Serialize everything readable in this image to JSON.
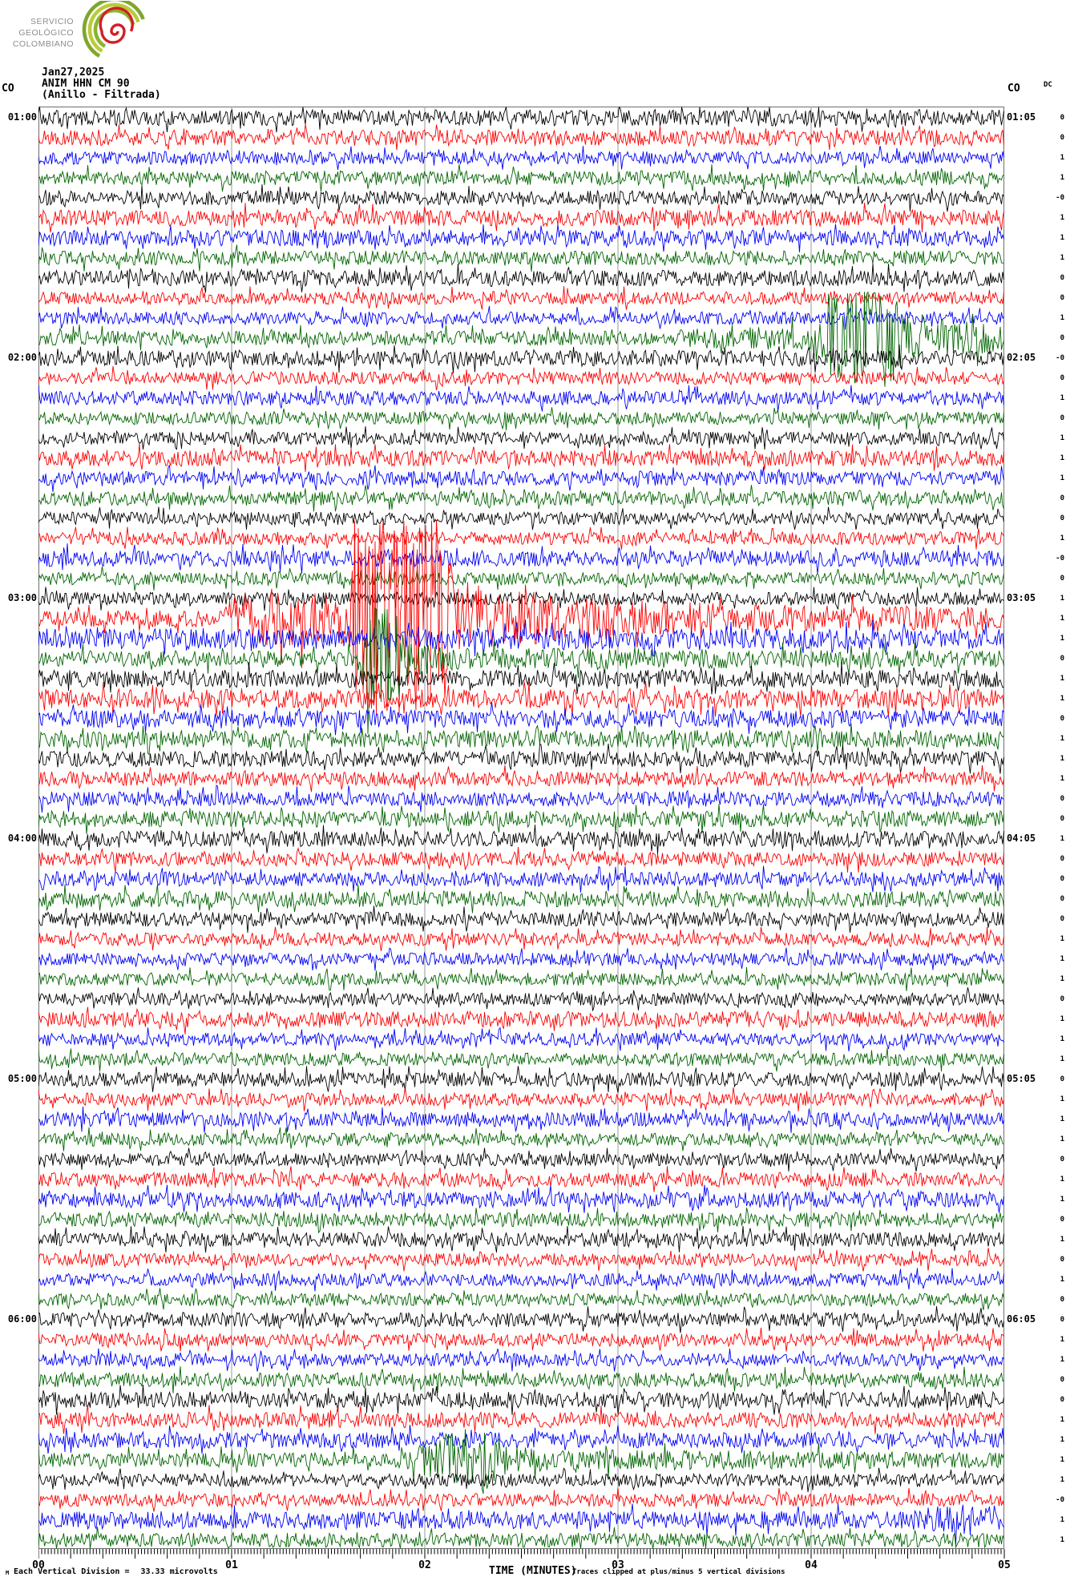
{
  "brand": {
    "lines": [
      "SERVICIO",
      "GEOLÓGICO",
      "COLOMBIANO"
    ]
  },
  "title": {
    "date": "Jan27,2025",
    "station": "ANIM HHN CM 90",
    "subtitle": "(Anillo - Filtrada)"
  },
  "labels": {
    "corner_left": "CO",
    "corner_right": "CO",
    "dc_header": "DC"
  },
  "footer": {
    "micro_mark": "M",
    "scale_text": "Each Vertical Division =",
    "scale_value": "33.33 microvolts",
    "time_label": "TIME (MINUTES)",
    "clip_note": "Traces clipped at plus/minus 5 vertical divisions"
  },
  "chart_data": {
    "type": "line",
    "subtype": "seismogram-helicorder",
    "title": "ANIM HHN CM 90 (Anillo - Filtrada)",
    "date": "Jan27,2025",
    "xlabel": "TIME (MINUTES)",
    "x_tick_labels": [
      "00",
      "01",
      "02",
      "03",
      "04",
      "05"
    ],
    "minutes_per_line": 5,
    "seconds_per_minor_tick": 1,
    "vertical_division_microvolts": "33.33",
    "clip_divisions": 5,
    "grid": true,
    "palette": {
      "black": "#000000",
      "red": "#fb0000",
      "blue": "#0000f5",
      "green": "#006400"
    },
    "left_time_labels": [
      {
        "row": 0,
        "text": "01:00"
      },
      {
        "row": 12,
        "text": "02:00"
      },
      {
        "row": 24,
        "text": "03:00"
      },
      {
        "row": 36,
        "text": "04:00"
      },
      {
        "row": 48,
        "text": "05:00"
      },
      {
        "row": 60,
        "text": "06:00"
      }
    ],
    "right_time_labels": [
      {
        "row": 0,
        "text": "01:05"
      },
      {
        "row": 12,
        "text": "02:05"
      },
      {
        "row": 24,
        "text": "03:05"
      },
      {
        "row": 36,
        "text": "04:05"
      },
      {
        "row": 48,
        "text": "05:05"
      },
      {
        "row": 60,
        "text": "06:05"
      }
    ],
    "events": [
      {
        "row": 11,
        "desc": "green burst near 01:59",
        "minute_range": [
          3.8,
          5.0
        ]
      },
      {
        "row": 25,
        "desc": "large clipped red event after 03:06",
        "minute_range": [
          1.0,
          5.0
        ]
      },
      {
        "row": 27,
        "desc": "green burst near 03:16:40",
        "minute_range": [
          1.63,
          1.92
        ]
      },
      {
        "row": 67,
        "desc": "green burst near 06:37",
        "minute_range": [
          1.85,
          2.4
        ]
      },
      {
        "row": 70,
        "desc": "elevated blue at line end",
        "minute_range": [
          4.5,
          5.0
        ]
      }
    ],
    "rows": [
      {
        "c": "black",
        "dc": "0"
      },
      {
        "c": "red",
        "dc": "0"
      },
      {
        "c": "blue",
        "dc": "1"
      },
      {
        "c": "green",
        "dc": "1"
      },
      {
        "c": "black",
        "dc": "-0"
      },
      {
        "c": "red",
        "dc": "1"
      },
      {
        "c": "blue",
        "dc": "1"
      },
      {
        "c": "green",
        "dc": "1"
      },
      {
        "c": "black",
        "dc": "0"
      },
      {
        "c": "red",
        "dc": "0"
      },
      {
        "c": "blue",
        "dc": "1"
      },
      {
        "c": "green",
        "dc": "0",
        "env": [
          [
            0,
            9
          ],
          [
            780,
            9
          ],
          [
            830,
            13
          ],
          [
            965,
            15
          ],
          [
            980,
            55
          ],
          [
            1060,
            62
          ],
          [
            1095,
            30
          ],
          [
            1205,
            17
          ]
        ]
      },
      {
        "c": "black",
        "dc": "-0",
        "amp": 10
      },
      {
        "c": "red",
        "dc": "0"
      },
      {
        "c": "blue",
        "dc": "1"
      },
      {
        "c": "green",
        "dc": "0"
      },
      {
        "c": "black",
        "dc": "1"
      },
      {
        "c": "red",
        "dc": "1"
      },
      {
        "c": "blue",
        "dc": "1"
      },
      {
        "c": "green",
        "dc": "0"
      },
      {
        "c": "black",
        "dc": "0"
      },
      {
        "c": "red",
        "dc": "1"
      },
      {
        "c": "blue",
        "dc": "-0"
      },
      {
        "c": "green",
        "dc": "0"
      },
      {
        "c": "black",
        "dc": "1"
      },
      {
        "c": "red",
        "dc": "1",
        "env": [
          [
            0,
            10
          ],
          [
            230,
            11
          ],
          [
            245,
            32
          ],
          [
            390,
            36
          ],
          [
            394,
            125
          ],
          [
            512,
            125
          ],
          [
            518,
            50
          ],
          [
            560,
            40
          ],
          [
            660,
            26
          ],
          [
            900,
            18
          ],
          [
            1205,
            14
          ]
        ]
      },
      {
        "c": "blue",
        "dc": "1",
        "amp": 13
      },
      {
        "c": "green",
        "dc": "0",
        "env": [
          [
            0,
            10
          ],
          [
            395,
            10
          ],
          [
            405,
            35
          ],
          [
            415,
            68
          ],
          [
            450,
            60
          ],
          [
            462,
            22
          ],
          [
            520,
            14
          ],
          [
            1205,
            10
          ]
        ]
      },
      {
        "c": "black",
        "dc": "1",
        "amp": 11
      },
      {
        "c": "red",
        "dc": "1",
        "amp": 12
      },
      {
        "c": "blue",
        "dc": "0",
        "amp": 11
      },
      {
        "c": "green",
        "dc": "1",
        "amp": 11
      },
      {
        "c": "black",
        "dc": "1"
      },
      {
        "c": "red",
        "dc": "1"
      },
      {
        "c": "blue",
        "dc": "0"
      },
      {
        "c": "green",
        "dc": "0"
      },
      {
        "c": "black",
        "dc": "1"
      },
      {
        "c": "red",
        "dc": "0"
      },
      {
        "c": "blue",
        "dc": "0"
      },
      {
        "c": "green",
        "dc": "0"
      },
      {
        "c": "black",
        "dc": "0"
      },
      {
        "c": "red",
        "dc": "1"
      },
      {
        "c": "blue",
        "dc": "1"
      },
      {
        "c": "green",
        "dc": "1"
      },
      {
        "c": "black",
        "dc": "0"
      },
      {
        "c": "red",
        "dc": "1"
      },
      {
        "c": "blue",
        "dc": "1"
      },
      {
        "c": "green",
        "dc": "1"
      },
      {
        "c": "black",
        "dc": "0"
      },
      {
        "c": "red",
        "dc": "1"
      },
      {
        "c": "blue",
        "dc": "1"
      },
      {
        "c": "green",
        "dc": "1"
      },
      {
        "c": "black",
        "dc": "0"
      },
      {
        "c": "red",
        "dc": "1"
      },
      {
        "c": "blue",
        "dc": "1"
      },
      {
        "c": "green",
        "dc": "0"
      },
      {
        "c": "black",
        "dc": "1"
      },
      {
        "c": "red",
        "dc": "0"
      },
      {
        "c": "blue",
        "dc": "1"
      },
      {
        "c": "green",
        "dc": "0"
      },
      {
        "c": "black",
        "dc": "0"
      },
      {
        "c": "red",
        "dc": "1"
      },
      {
        "c": "blue",
        "dc": "1"
      },
      {
        "c": "green",
        "dc": "0"
      },
      {
        "c": "black",
        "dc": "0"
      },
      {
        "c": "red",
        "dc": "1"
      },
      {
        "c": "blue",
        "dc": "1"
      },
      {
        "c": "green",
        "dc": "1",
        "env": [
          [
            0,
            9
          ],
          [
            445,
            9
          ],
          [
            465,
            15
          ],
          [
            505,
            26
          ],
          [
            512,
            42
          ],
          [
            558,
            46
          ],
          [
            572,
            20
          ],
          [
            645,
            13
          ],
          [
            1205,
            10
          ]
        ]
      },
      {
        "c": "black",
        "dc": "1"
      },
      {
        "c": "red",
        "dc": "-0"
      },
      {
        "c": "blue",
        "dc": "1",
        "env": [
          [
            0,
            11
          ],
          [
            1080,
            11
          ],
          [
            1130,
            20
          ],
          [
            1205,
            19
          ]
        ]
      },
      {
        "c": "green",
        "dc": "1"
      }
    ]
  }
}
